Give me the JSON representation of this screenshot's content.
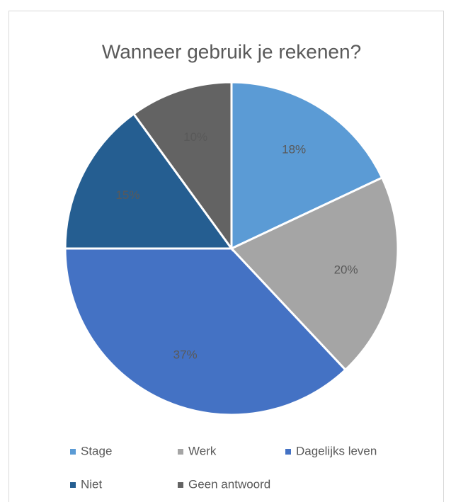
{
  "chart_data": {
    "type": "pie",
    "title": "Wanneer gebruik je rekenen?",
    "categories": [
      "Stage",
      "Werk",
      "Dagelijks leven",
      "Niet",
      "Geen antwoord"
    ],
    "values": [
      18,
      20,
      37,
      15,
      10
    ],
    "value_labels": [
      "18%",
      "20%",
      "37%",
      "15%",
      "10%"
    ],
    "colors": [
      "#5b9bd5",
      "#a5a5a5",
      "#4472c4",
      "#255e91",
      "#636363"
    ],
    "legend": "bottom"
  }
}
